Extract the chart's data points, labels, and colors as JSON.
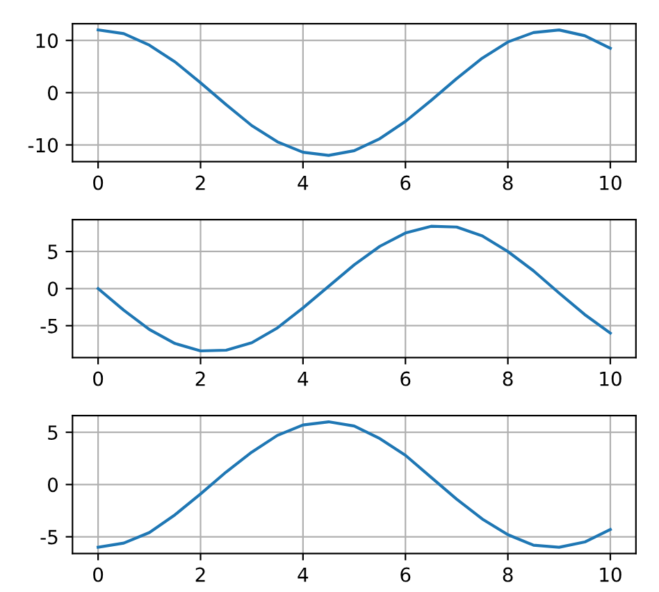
{
  "chart_data": [
    {
      "type": "line",
      "x": [
        0,
        0.5,
        1,
        1.5,
        2,
        2.5,
        3,
        3.5,
        4,
        4.5,
        5,
        5.5,
        6,
        6.5,
        7,
        7.5,
        8,
        8.5,
        9,
        9.5,
        10
      ],
      "values": [
        12,
        11.3,
        9.1,
        5.9,
        1.9,
        -2.3,
        -6.3,
        -9.4,
        -11.4,
        -12,
        -11.1,
        -8.8,
        -5.5,
        -1.5,
        2.7,
        6.6,
        9.7,
        11.5,
        12,
        10.9,
        8.5
      ],
      "color": "#1f77b4",
      "xlim": [
        -0.5,
        10.5
      ],
      "ylim": [
        -13.2,
        13.2
      ],
      "xticks": [
        0,
        2,
        4,
        6,
        8,
        10
      ],
      "yticks": [
        -10,
        0,
        10
      ],
      "grid": true
    },
    {
      "type": "line",
      "x": [
        0,
        0.5,
        1,
        1.5,
        2,
        2.5,
        3,
        3.5,
        4,
        4.5,
        5,
        5.5,
        6,
        6.5,
        7,
        7.5,
        8,
        8.5,
        9,
        9.5,
        10
      ],
      "values": [
        0,
        -2.9,
        -5.5,
        -7.4,
        -8.4,
        -8.3,
        -7.3,
        -5.3,
        -2.6,
        0.3,
        3.2,
        5.7,
        7.5,
        8.4,
        8.3,
        7.1,
        5,
        2.4,
        -0.6,
        -3.5,
        -6
      ],
      "color": "#1f77b4",
      "xlim": [
        -0.5,
        10.5
      ],
      "ylim": [
        -9.3,
        9.3
      ],
      "xticks": [
        0,
        2,
        4,
        6,
        8,
        10
      ],
      "yticks": [
        -5,
        0,
        5
      ],
      "grid": true
    },
    {
      "type": "line",
      "x": [
        0,
        0.5,
        1,
        1.5,
        2,
        2.5,
        3,
        3.5,
        4,
        4.5,
        5,
        5.5,
        6,
        6.5,
        7,
        7.5,
        8,
        8.5,
        9,
        9.5,
        10
      ],
      "values": [
        -6,
        -5.6,
        -4.6,
        -2.9,
        -0.9,
        1.2,
        3.1,
        4.7,
        5.7,
        6,
        5.6,
        4.4,
        2.8,
        0.7,
        -1.4,
        -3.3,
        -4.8,
        -5.8,
        -6,
        -5.5,
        -4.3
      ],
      "color": "#1f77b4",
      "xlim": [
        -0.5,
        10.5
      ],
      "ylim": [
        -6.6,
        6.6
      ],
      "xticks": [
        0,
        2,
        4,
        6,
        8,
        10
      ],
      "yticks": [
        -5,
        0,
        5
      ],
      "grid": true
    }
  ]
}
